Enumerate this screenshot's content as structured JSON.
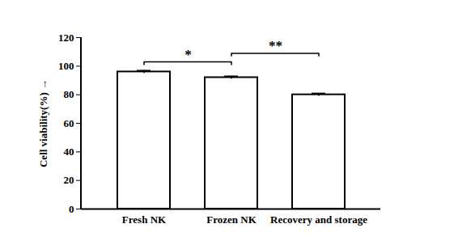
{
  "chart_data": {
    "type": "bar",
    "categories": [
      "Fresh NK",
      "Frozen NK",
      "Recovery and storage"
    ],
    "values": [
      96,
      92,
      80
    ],
    "errors": [
      1,
      1,
      1
    ],
    "color": "#ffffff",
    "ylabel": "Cell viability(%)",
    "ylim": [
      0,
      120
    ],
    "yticks": [
      0,
      20,
      40,
      60,
      80,
      100,
      120
    ],
    "grid": false,
    "significance": [
      {
        "from": "Fresh NK",
        "to": "Frozen NK",
        "label": "*"
      },
      {
        "from": "Frozen NK",
        "to": "Recovery and storage",
        "label": "**"
      }
    ]
  }
}
